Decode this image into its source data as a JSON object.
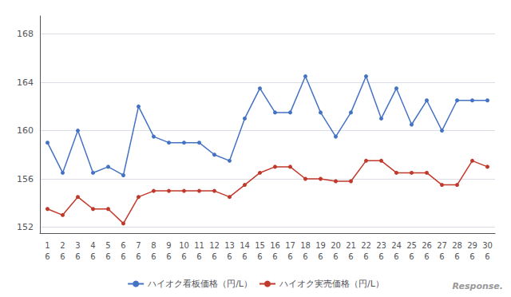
{
  "chart_data": {
    "type": "line",
    "categories": [
      "1",
      "2",
      "3",
      "4",
      "5",
      "6",
      "7",
      "8",
      "9",
      "10",
      "11",
      "12",
      "13",
      "14",
      "15",
      "16",
      "17",
      "18",
      "19",
      "20",
      "21",
      "22",
      "23",
      "24",
      "25",
      "26",
      "27",
      "28",
      "29",
      "30"
    ],
    "series": [
      {
        "name": "ハイオク看板価格（円/L）",
        "color": "#4472c4",
        "marker": "circle",
        "values": [
          159.0,
          156.5,
          160.0,
          156.5,
          157.0,
          156.3,
          162.0,
          159.5,
          159.0,
          159.0,
          159.0,
          158.0,
          157.5,
          161.0,
          163.5,
          161.5,
          161.5,
          164.5,
          161.5,
          159.5,
          161.5,
          164.5,
          161.0,
          163.5,
          160.5,
          162.5,
          160.0,
          162.5,
          162.5,
          162.5
        ]
      },
      {
        "name": "ハイオク実売価格（円/L）",
        "color": "#c0392b",
        "marker": "circle",
        "values": [
          153.5,
          153.0,
          154.5,
          153.5,
          153.5,
          152.3,
          154.5,
          155.0,
          155.0,
          155.0,
          155.0,
          155.0,
          154.5,
          155.5,
          156.5,
          157.0,
          157.0,
          156.0,
          156.0,
          155.8,
          155.8,
          157.5,
          157.5,
          156.5,
          156.5,
          156.5,
          155.5,
          155.5,
          157.5,
          157.0
        ]
      }
    ],
    "ylim": [
      151.5,
      169.5
    ],
    "yticks": [
      152,
      156,
      160,
      164,
      168
    ],
    "grid": true,
    "legend": "bottom",
    "annotations": [
      {
        "text": "6",
        "x": "1"
      },
      {
        "text": "6",
        "x": "2"
      },
      {
        "text": "6",
        "x": "3"
      },
      {
        "text": "6",
        "x": "4"
      },
      {
        "text": "6",
        "x": "5"
      },
      {
        "text": "6",
        "x": "6"
      },
      {
        "text": "6",
        "x": "7"
      },
      {
        "text": "6",
        "x": "8"
      },
      {
        "text": "6",
        "x": "9"
      },
      {
        "text": "6",
        "x": "10"
      },
      {
        "text": "6",
        "x": "11"
      },
      {
        "text": "6",
        "x": "12"
      },
      {
        "text": "6",
        "x": "13"
      },
      {
        "text": "6",
        "x": "14"
      },
      {
        "text": "6",
        "x": "15"
      },
      {
        "text": "6",
        "x": "16"
      },
      {
        "text": "6",
        "x": "17"
      },
      {
        "text": "6",
        "x": "18"
      },
      {
        "text": "6",
        "x": "19"
      },
      {
        "text": "6",
        "x": "20"
      },
      {
        "text": "6",
        "x": "21"
      },
      {
        "text": "6",
        "x": "22"
      },
      {
        "text": "6",
        "x": "23"
      },
      {
        "text": "6",
        "x": "24"
      },
      {
        "text": "6",
        "x": "25"
      },
      {
        "text": "6",
        "x": "26"
      },
      {
        "text": "6",
        "x": "27"
      },
      {
        "text": "6",
        "x": "28"
      },
      {
        "text": "6",
        "x": "29"
      },
      {
        "text": "6",
        "x": "30"
      },
      {
        "text": "Response."
      }
    ]
  }
}
